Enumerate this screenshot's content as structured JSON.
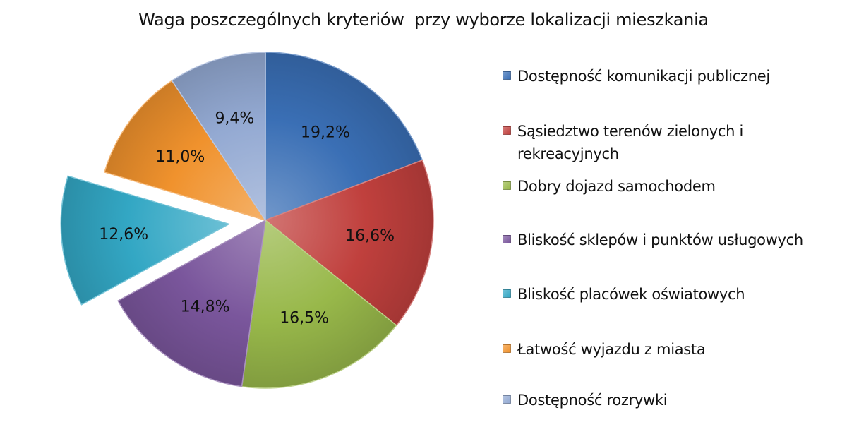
{
  "chart_data": {
    "type": "pie",
    "title": "Waga poszczególnych kryteriów  przy wyborze lokalizacji mieszkania",
    "categories": [
      "Dostępność komunikacji publicznej",
      "Sąsiedztwo terenów zielonych i rekreacyjnych",
      "Dobry dojazd samochodem",
      "Bliskość sklepów i punktów usługowych",
      "Bliskość placówek oświatowych",
      "Łatwość wyjazdu z miasta",
      "Dostępność rozrywki"
    ],
    "values": [
      19.2,
      16.6,
      16.5,
      14.8,
      12.6,
      11.0,
      9.4
    ],
    "data_labels": [
      "19,2%",
      "16,6%",
      "16,5%",
      "14,8%",
      "12,6%",
      "11,0%",
      "9,4%"
    ],
    "colors": [
      "#3a6fb5",
      "#c0403d",
      "#98b84a",
      "#7a569c",
      "#33a7c4",
      "#f0922d",
      "#93a9d2"
    ],
    "exploded_slice": "Bliskość placówek oświatowych",
    "legend_position": "right"
  }
}
